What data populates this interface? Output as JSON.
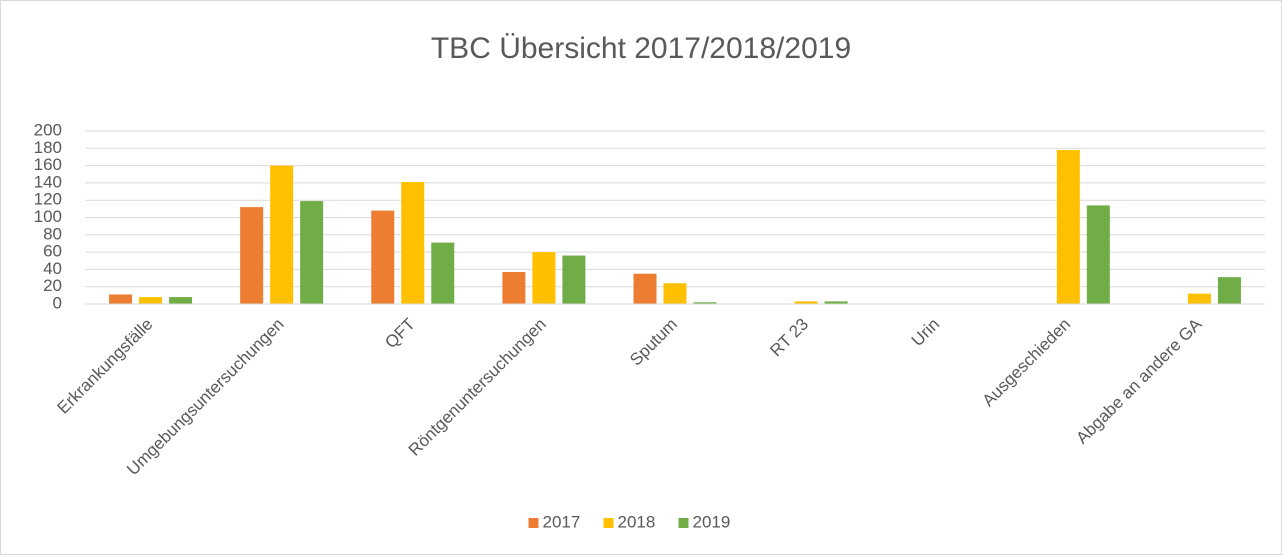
{
  "chart_data": {
    "type": "bar",
    "title": "TBC Übersicht 2017/2018/2019",
    "categories": [
      "Erkrankungsfälle",
      "Umgebungsuntersuchungen",
      "QFT",
      "Röntgenuntersuchungen",
      "Sputum",
      "RT 23",
      "Urin",
      "Ausgeschieden",
      "Abgabe an andere GA"
    ],
    "series": [
      {
        "name": "2017",
        "color": "#ed7d31",
        "values": [
          11,
          112,
          108,
          37,
          35,
          0,
          0,
          0,
          0
        ]
      },
      {
        "name": "2018",
        "color": "#ffc000",
        "values": [
          8,
          160,
          141,
          60,
          24,
          3,
          0,
          178,
          12
        ]
      },
      {
        "name": "2019",
        "color": "#70ad47",
        "values": [
          8,
          119,
          71,
          56,
          2,
          3,
          0,
          114,
          31
        ]
      }
    ],
    "ylim": [
      0,
      200
    ],
    "yticks": [
      0,
      20,
      40,
      60,
      80,
      100,
      120,
      140,
      160,
      180,
      200
    ],
    "grid": true,
    "legend": "bottom"
  }
}
